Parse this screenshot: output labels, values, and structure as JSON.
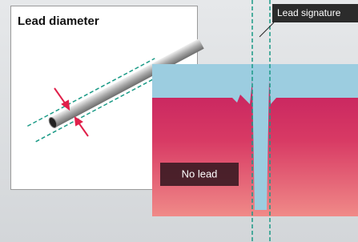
{
  "header": {
    "title": "Lead diameter"
  },
  "labels": {
    "signature": "Lead signature",
    "no_lead": "No lead"
  }
}
